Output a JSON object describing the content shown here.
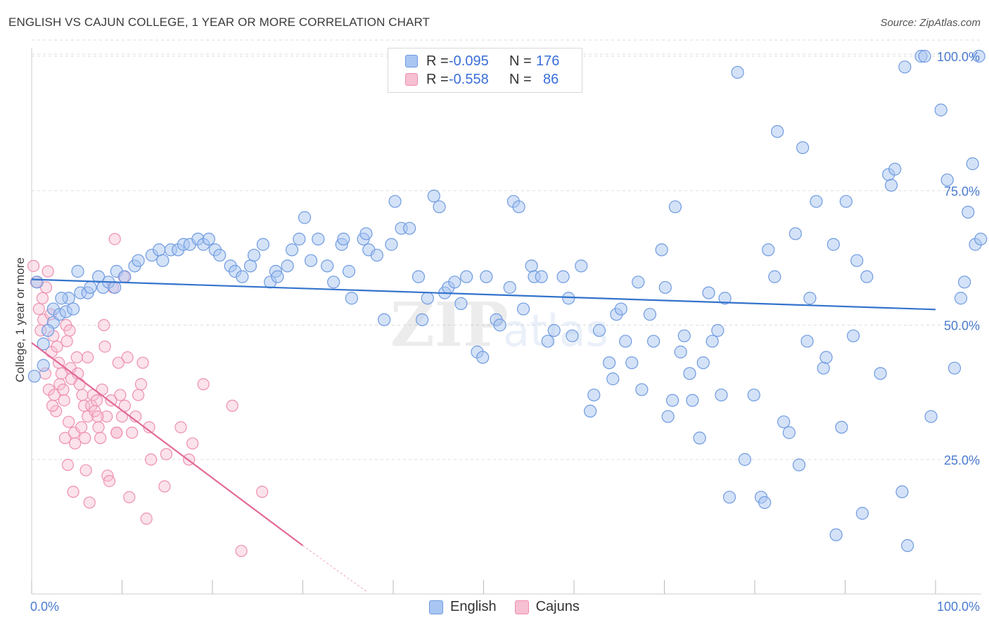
{
  "title": "ENGLISH VS CAJUN COLLEGE, 1 YEAR OR MORE CORRELATION CHART",
  "source": "Source: ZipAtlas.com",
  "legend": {
    "english": {
      "r_label": "R =",
      "r_value": "-0.095",
      "n_label": "N =",
      "n_value": "176"
    },
    "cajuns": {
      "r_label": "R =",
      "r_value": "-0.558",
      "n_label": "N =",
      "n_value": "86"
    }
  },
  "bottom_legend": {
    "english": "English",
    "cajuns": "Cajuns"
  },
  "colors": {
    "english_fill": "#a9c6f2",
    "english_stroke": "#6f9be0",
    "english_line": "#3373cc",
    "cajun_fill": "#f7bfd2",
    "cajun_stroke": "#ee8fb0",
    "cajun_line": "#e16a98",
    "tick_text": "#4a7bd0",
    "grid": "#dddddd"
  },
  "chart_data": {
    "type": "scatter",
    "title": "ENGLISH VS CAJUN COLLEGE, 1 YEAR OR MORE CORRELATION CHART",
    "xlabel": "",
    "ylabel": "College, 1 year or more",
    "xlim": [
      0,
      105
    ],
    "ylim": [
      0,
      103
    ],
    "x_tick_labels": [
      "0.0%",
      "100.0%"
    ],
    "y_ticks": [
      25,
      50,
      75,
      100
    ],
    "y_tick_labels": [
      "25.0%",
      "50.0%",
      "75.0%",
      "100.0%"
    ],
    "grid": true,
    "series": [
      {
        "name": "English",
        "r": -0.095,
        "n": 176,
        "trend": {
          "x0": 0,
          "y0": 58.5,
          "x1": 100,
          "y1": 52.9
        },
        "points": [
          [
            0.3,
            40.5
          ],
          [
            1.3,
            42.5
          ],
          [
            1.3,
            46.5
          ],
          [
            2.4,
            50.5
          ],
          [
            2.4,
            53
          ],
          [
            3.1,
            52
          ],
          [
            3.8,
            52.5
          ],
          [
            4.1,
            55
          ],
          [
            4.6,
            53
          ],
          [
            5.4,
            56
          ],
          [
            6.2,
            56
          ],
          [
            6.5,
            57
          ],
          [
            7.4,
            59
          ],
          [
            7.9,
            57
          ],
          [
            8.5,
            58
          ],
          [
            9.2,
            57
          ],
          [
            9.4,
            60
          ],
          [
            10.3,
            59
          ],
          [
            11.4,
            61
          ],
          [
            11.8,
            62
          ],
          [
            13.3,
            63
          ],
          [
            14.1,
            64
          ],
          [
            14.5,
            62
          ],
          [
            15.4,
            64
          ],
          [
            16.2,
            64
          ],
          [
            16.8,
            65
          ],
          [
            17.5,
            65
          ],
          [
            18.4,
            66
          ],
          [
            19.0,
            65
          ],
          [
            19.6,
            66
          ],
          [
            20.3,
            64
          ],
          [
            20.8,
            63
          ],
          [
            22.0,
            61
          ],
          [
            22.5,
            60
          ],
          [
            23.3,
            59
          ],
          [
            24.2,
            61
          ],
          [
            24.6,
            63
          ],
          [
            25.6,
            65
          ],
          [
            26.4,
            58
          ],
          [
            27.0,
            60
          ],
          [
            27.2,
            59
          ],
          [
            28.3,
            61
          ],
          [
            28.8,
            64
          ],
          [
            29.6,
            66
          ],
          [
            30.2,
            70
          ],
          [
            30.9,
            62
          ],
          [
            31.7,
            66
          ],
          [
            32.7,
            61
          ],
          [
            33.4,
            58
          ],
          [
            34.3,
            65
          ],
          [
            34.5,
            66
          ],
          [
            35.1,
            60
          ],
          [
            35.4,
            55
          ],
          [
            36.7,
            66
          ],
          [
            37.0,
            67
          ],
          [
            37.3,
            64
          ],
          [
            38.2,
            63
          ],
          [
            39.0,
            51
          ],
          [
            39.8,
            65
          ],
          [
            40.2,
            73
          ],
          [
            40.9,
            68
          ],
          [
            41.8,
            68
          ],
          [
            42.8,
            59
          ],
          [
            43.2,
            51
          ],
          [
            43.8,
            55
          ],
          [
            44.5,
            74
          ],
          [
            45.1,
            72
          ],
          [
            45.7,
            56
          ],
          [
            46.1,
            57
          ],
          [
            46.8,
            58
          ],
          [
            47.5,
            54
          ],
          [
            48.1,
            59
          ],
          [
            49.3,
            45
          ],
          [
            49.9,
            44
          ],
          [
            50.3,
            59
          ],
          [
            51.4,
            51
          ],
          [
            51.8,
            50
          ],
          [
            52.9,
            57
          ],
          [
            53.3,
            73
          ],
          [
            53.9,
            72
          ],
          [
            54.4,
            53
          ],
          [
            55.3,
            61
          ],
          [
            55.6,
            59
          ],
          [
            56.4,
            59
          ],
          [
            57.1,
            47
          ],
          [
            57.8,
            49
          ],
          [
            58.8,
            59
          ],
          [
            59.4,
            55
          ],
          [
            59.8,
            48
          ],
          [
            60.8,
            61
          ],
          [
            61.8,
            34
          ],
          [
            62.2,
            37
          ],
          [
            62.8,
            49
          ],
          [
            63.9,
            43
          ],
          [
            64.3,
            40
          ],
          [
            64.7,
            52
          ],
          [
            65.2,
            53
          ],
          [
            65.7,
            47
          ],
          [
            66.4,
            43
          ],
          [
            67.1,
            58
          ],
          [
            67.5,
            38
          ],
          [
            68.4,
            52
          ],
          [
            68.8,
            47
          ],
          [
            69.7,
            64
          ],
          [
            70.1,
            57
          ],
          [
            70.4,
            33
          ],
          [
            70.9,
            36
          ],
          [
            71.2,
            72
          ],
          [
            71.8,
            45
          ],
          [
            72.2,
            48
          ],
          [
            72.8,
            41
          ],
          [
            73.1,
            36
          ],
          [
            73.9,
            29
          ],
          [
            74.3,
            43
          ],
          [
            74.9,
            56
          ],
          [
            75.3,
            47
          ],
          [
            75.9,
            49
          ],
          [
            76.3,
            37
          ],
          [
            76.7,
            55
          ],
          [
            77.2,
            18
          ],
          [
            78.1,
            97
          ],
          [
            78.9,
            25
          ],
          [
            79.9,
            37
          ],
          [
            80.7,
            18
          ],
          [
            81.1,
            17
          ],
          [
            81.5,
            64
          ],
          [
            82.2,
            59
          ],
          [
            82.5,
            86
          ],
          [
            83.2,
            32
          ],
          [
            83.8,
            30
          ],
          [
            84.5,
            67
          ],
          [
            84.9,
            24
          ],
          [
            85.3,
            83
          ],
          [
            85.8,
            47
          ],
          [
            86.1,
            55
          ],
          [
            86.8,
            73
          ],
          [
            87.6,
            42
          ],
          [
            87.9,
            44
          ],
          [
            88.7,
            65
          ],
          [
            89.0,
            11
          ],
          [
            89.6,
            31
          ],
          [
            90.1,
            73
          ],
          [
            90.9,
            48
          ],
          [
            91.3,
            62
          ],
          [
            91.9,
            15
          ],
          [
            92.4,
            59
          ],
          [
            93.9,
            41
          ],
          [
            94.8,
            78
          ],
          [
            95.1,
            76
          ],
          [
            95.5,
            79
          ],
          [
            96.3,
            19
          ],
          [
            96.6,
            98
          ],
          [
            96.9,
            9
          ],
          [
            98.4,
            100
          ],
          [
            98.8,
            100
          ],
          [
            99.5,
            33
          ],
          [
            100.6,
            90
          ],
          [
            101.3,
            77
          ],
          [
            102.1,
            42
          ],
          [
            102.8,
            55
          ],
          [
            103.2,
            58
          ],
          [
            103.6,
            71
          ],
          [
            104.1,
            80
          ],
          [
            104.4,
            65
          ],
          [
            104.8,
            100
          ],
          [
            105.0,
            66
          ],
          [
            0.6,
            58
          ],
          [
            1.8,
            49
          ],
          [
            3.3,
            55
          ],
          [
            5.1,
            60
          ]
        ]
      },
      {
        "name": "Cajuns",
        "r": -0.558,
        "n": 86,
        "trend": {
          "x0": 0,
          "y0": 46.7,
          "x1": 30,
          "y1": 9.0
        },
        "trend_extension": {
          "x0": 30,
          "y0": 9.0,
          "x1": 37,
          "y1": 0.5
        },
        "points": [
          [
            0.2,
            61
          ],
          [
            0.5,
            58
          ],
          [
            0.8,
            53
          ],
          [
            1.0,
            49
          ],
          [
            1.2,
            55
          ],
          [
            1.3,
            51
          ],
          [
            1.5,
            41
          ],
          [
            1.6,
            57
          ],
          [
            1.8,
            60
          ],
          [
            1.9,
            38
          ],
          [
            2.1,
            52
          ],
          [
            2.2,
            45
          ],
          [
            2.4,
            48
          ],
          [
            2.5,
            37
          ],
          [
            2.7,
            34
          ],
          [
            2.8,
            46
          ],
          [
            3.0,
            43
          ],
          [
            3.1,
            39
          ],
          [
            3.3,
            41
          ],
          [
            3.5,
            38
          ],
          [
            3.6,
            36
          ],
          [
            3.7,
            29
          ],
          [
            3.8,
            50
          ],
          [
            4.0,
            24
          ],
          [
            4.1,
            32
          ],
          [
            4.2,
            49
          ],
          [
            4.3,
            42
          ],
          [
            4.4,
            40
          ],
          [
            4.6,
            19
          ],
          [
            4.7,
            30
          ],
          [
            4.8,
            28
          ],
          [
            5.0,
            44
          ],
          [
            5.1,
            41
          ],
          [
            5.3,
            39
          ],
          [
            5.5,
            31
          ],
          [
            5.6,
            37
          ],
          [
            5.8,
            35
          ],
          [
            5.9,
            29
          ],
          [
            6.0,
            23
          ],
          [
            6.2,
            33
          ],
          [
            6.4,
            17
          ],
          [
            6.6,
            35
          ],
          [
            6.8,
            37
          ],
          [
            7.0,
            34
          ],
          [
            7.2,
            36
          ],
          [
            7.4,
            31
          ],
          [
            7.6,
            29
          ],
          [
            7.8,
            38
          ],
          [
            8.0,
            50
          ],
          [
            8.1,
            46
          ],
          [
            8.3,
            33
          ],
          [
            8.4,
            22
          ],
          [
            8.6,
            21
          ],
          [
            8.8,
            36
          ],
          [
            9.0,
            57
          ],
          [
            9.2,
            66
          ],
          [
            9.4,
            30
          ],
          [
            9.6,
            43
          ],
          [
            9.8,
            37
          ],
          [
            10.0,
            33
          ],
          [
            10.3,
            35
          ],
          [
            10.6,
            44
          ],
          [
            10.8,
            18
          ],
          [
            11.1,
            30
          ],
          [
            11.5,
            33
          ],
          [
            11.8,
            37
          ],
          [
            12.1,
            39
          ],
          [
            12.3,
            43
          ],
          [
            12.7,
            14
          ],
          [
            13.0,
            31
          ],
          [
            13.2,
            25
          ],
          [
            14.7,
            20
          ],
          [
            14.9,
            26
          ],
          [
            16.5,
            31
          ],
          [
            17.4,
            25
          ],
          [
            17.8,
            28
          ],
          [
            19.0,
            39
          ],
          [
            22.2,
            35
          ],
          [
            23.2,
            8
          ],
          [
            25.5,
            19
          ],
          [
            6.2,
            44
          ],
          [
            9.4,
            30
          ],
          [
            10.2,
            59
          ],
          [
            3.9,
            47
          ],
          [
            2.3,
            35
          ],
          [
            7.3,
            33
          ]
        ]
      }
    ]
  }
}
